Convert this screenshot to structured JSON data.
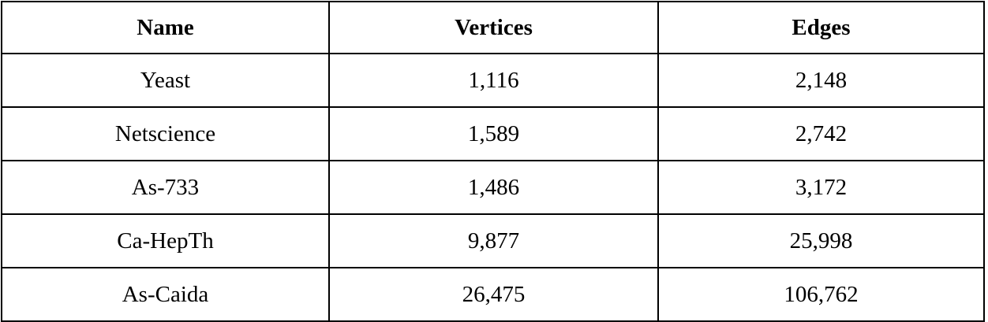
{
  "table": {
    "headers": [
      "Name",
      "Vertices",
      "Edges"
    ],
    "rows": [
      [
        "Yeast",
        "1,116",
        "2,148"
      ],
      [
        "Netscience",
        "1,589",
        "2,742"
      ],
      [
        "As-733",
        "1,486",
        "3,172"
      ],
      [
        "Ca-HepTh",
        "9,877",
        "25,998"
      ],
      [
        "As-Caida",
        "26,475",
        "106,762"
      ]
    ]
  }
}
